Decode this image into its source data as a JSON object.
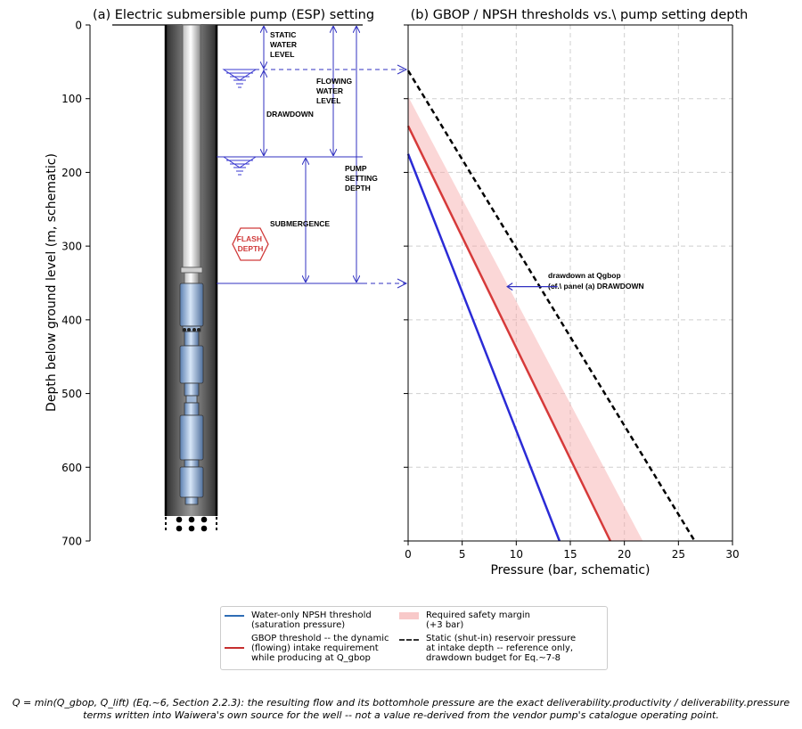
{
  "panel_a": {
    "title": "(a) Electric submersible pump (ESP) setting",
    "ylabel": "Depth below ground level (m, schematic)",
    "yticks": [
      "0",
      "100",
      "200",
      "300",
      "400",
      "500",
      "600",
      "700"
    ],
    "labels": {
      "static_water_level": [
        "STATIC",
        "WATER",
        "LEVEL"
      ],
      "flowing_water_level": [
        "FLOWING",
        "WATER",
        "LEVEL"
      ],
      "drawdown": "DRAWDOWN",
      "pump_setting_depth": [
        "PUMP",
        "SETTING",
        "DEPTH"
      ],
      "submergence": "SUBMERGENCE",
      "flash_depth": [
        "FLASH",
        "DEPTH"
      ]
    }
  },
  "chart_data": {
    "type": "line",
    "title": "(b) GBOP / NPSH thresholds vs.\\ pump setting depth",
    "xlabel": "Pressure (bar, schematic)",
    "xlim": [
      0,
      30
    ],
    "ylim": [
      700,
      0
    ],
    "xticks": [
      "0",
      "5",
      "10",
      "15",
      "20",
      "25",
      "30"
    ],
    "grid": true,
    "series": [
      {
        "name": "Water-only NPSH threshold\n(saturation pressure)",
        "color": "#2b2bd6",
        "style": "solid",
        "x": [
          0,
          14
        ],
        "y": [
          175,
          700
        ]
      },
      {
        "name": "GBOP threshold -- the dynamic\n(flowing) intake requirement\nwhile producing at Q_gbop",
        "color": "#d63a3a",
        "style": "solid",
        "x": [
          0,
          18.7
        ],
        "y": [
          137,
          700
        ]
      },
      {
        "name": "Static (shut-in) reservoir pressure\nat intake depth -- reference only,\ndrawdown budget for Eq.~7-8",
        "color": "#000000",
        "style": "dashed",
        "x": [
          0,
          26.5
        ],
        "y": [
          62,
          700
        ]
      }
    ],
    "band": {
      "name": "Required safety margin\n(+3 bar)",
      "color": "#f7a6a6",
      "lower_x": [
        0,
        18.7
      ],
      "lower_y": [
        137,
        700
      ],
      "upper_x": [
        0,
        21.7
      ],
      "upper_y": [
        97,
        700
      ]
    },
    "annotations": [
      {
        "text": "drawdown at Qgbop",
        "text2": "(cf.\\ panel (a) DRAWDOWN",
        "arrow_from": [
          12,
          355
        ],
        "arrow_to": [
          9,
          355
        ]
      }
    ],
    "reference_lines": [
      {
        "label": "flowing water level",
        "y": 62
      },
      {
        "label": "pump setting depth",
        "y": 350
      }
    ]
  },
  "legend": {
    "items": [
      {
        "key": "line",
        "color": "#2f6db5",
        "text": "Water-only NPSH threshold\n(saturation pressure)"
      },
      {
        "key": "line",
        "color": "#c62f2f",
        "text": "GBOP threshold -- the dynamic\n(flowing) intake requirement\nwhile producing at Q_gbop"
      },
      {
        "key": "patch",
        "color": "#f8c9c9",
        "text": "Required safety margin\n(+3 bar)"
      },
      {
        "key": "dash",
        "color": "#333333",
        "text": "Static (shut-in) reservoir pressure\nat intake depth -- reference only,\ndrawdown budget for Eq.~7-8"
      }
    ]
  },
  "caption": {
    "line1": "Q = min(Q_gbop, Q_lift) (Eq.~6, Section 2.2.3): the resulting flow and its bottomhole pressure are the exact deliverability.productivity / deliverability.pressure",
    "line2": "terms written into Waiwera's own source for the well -- not a value re-derived from the vendor pump's catalogue operating point."
  }
}
